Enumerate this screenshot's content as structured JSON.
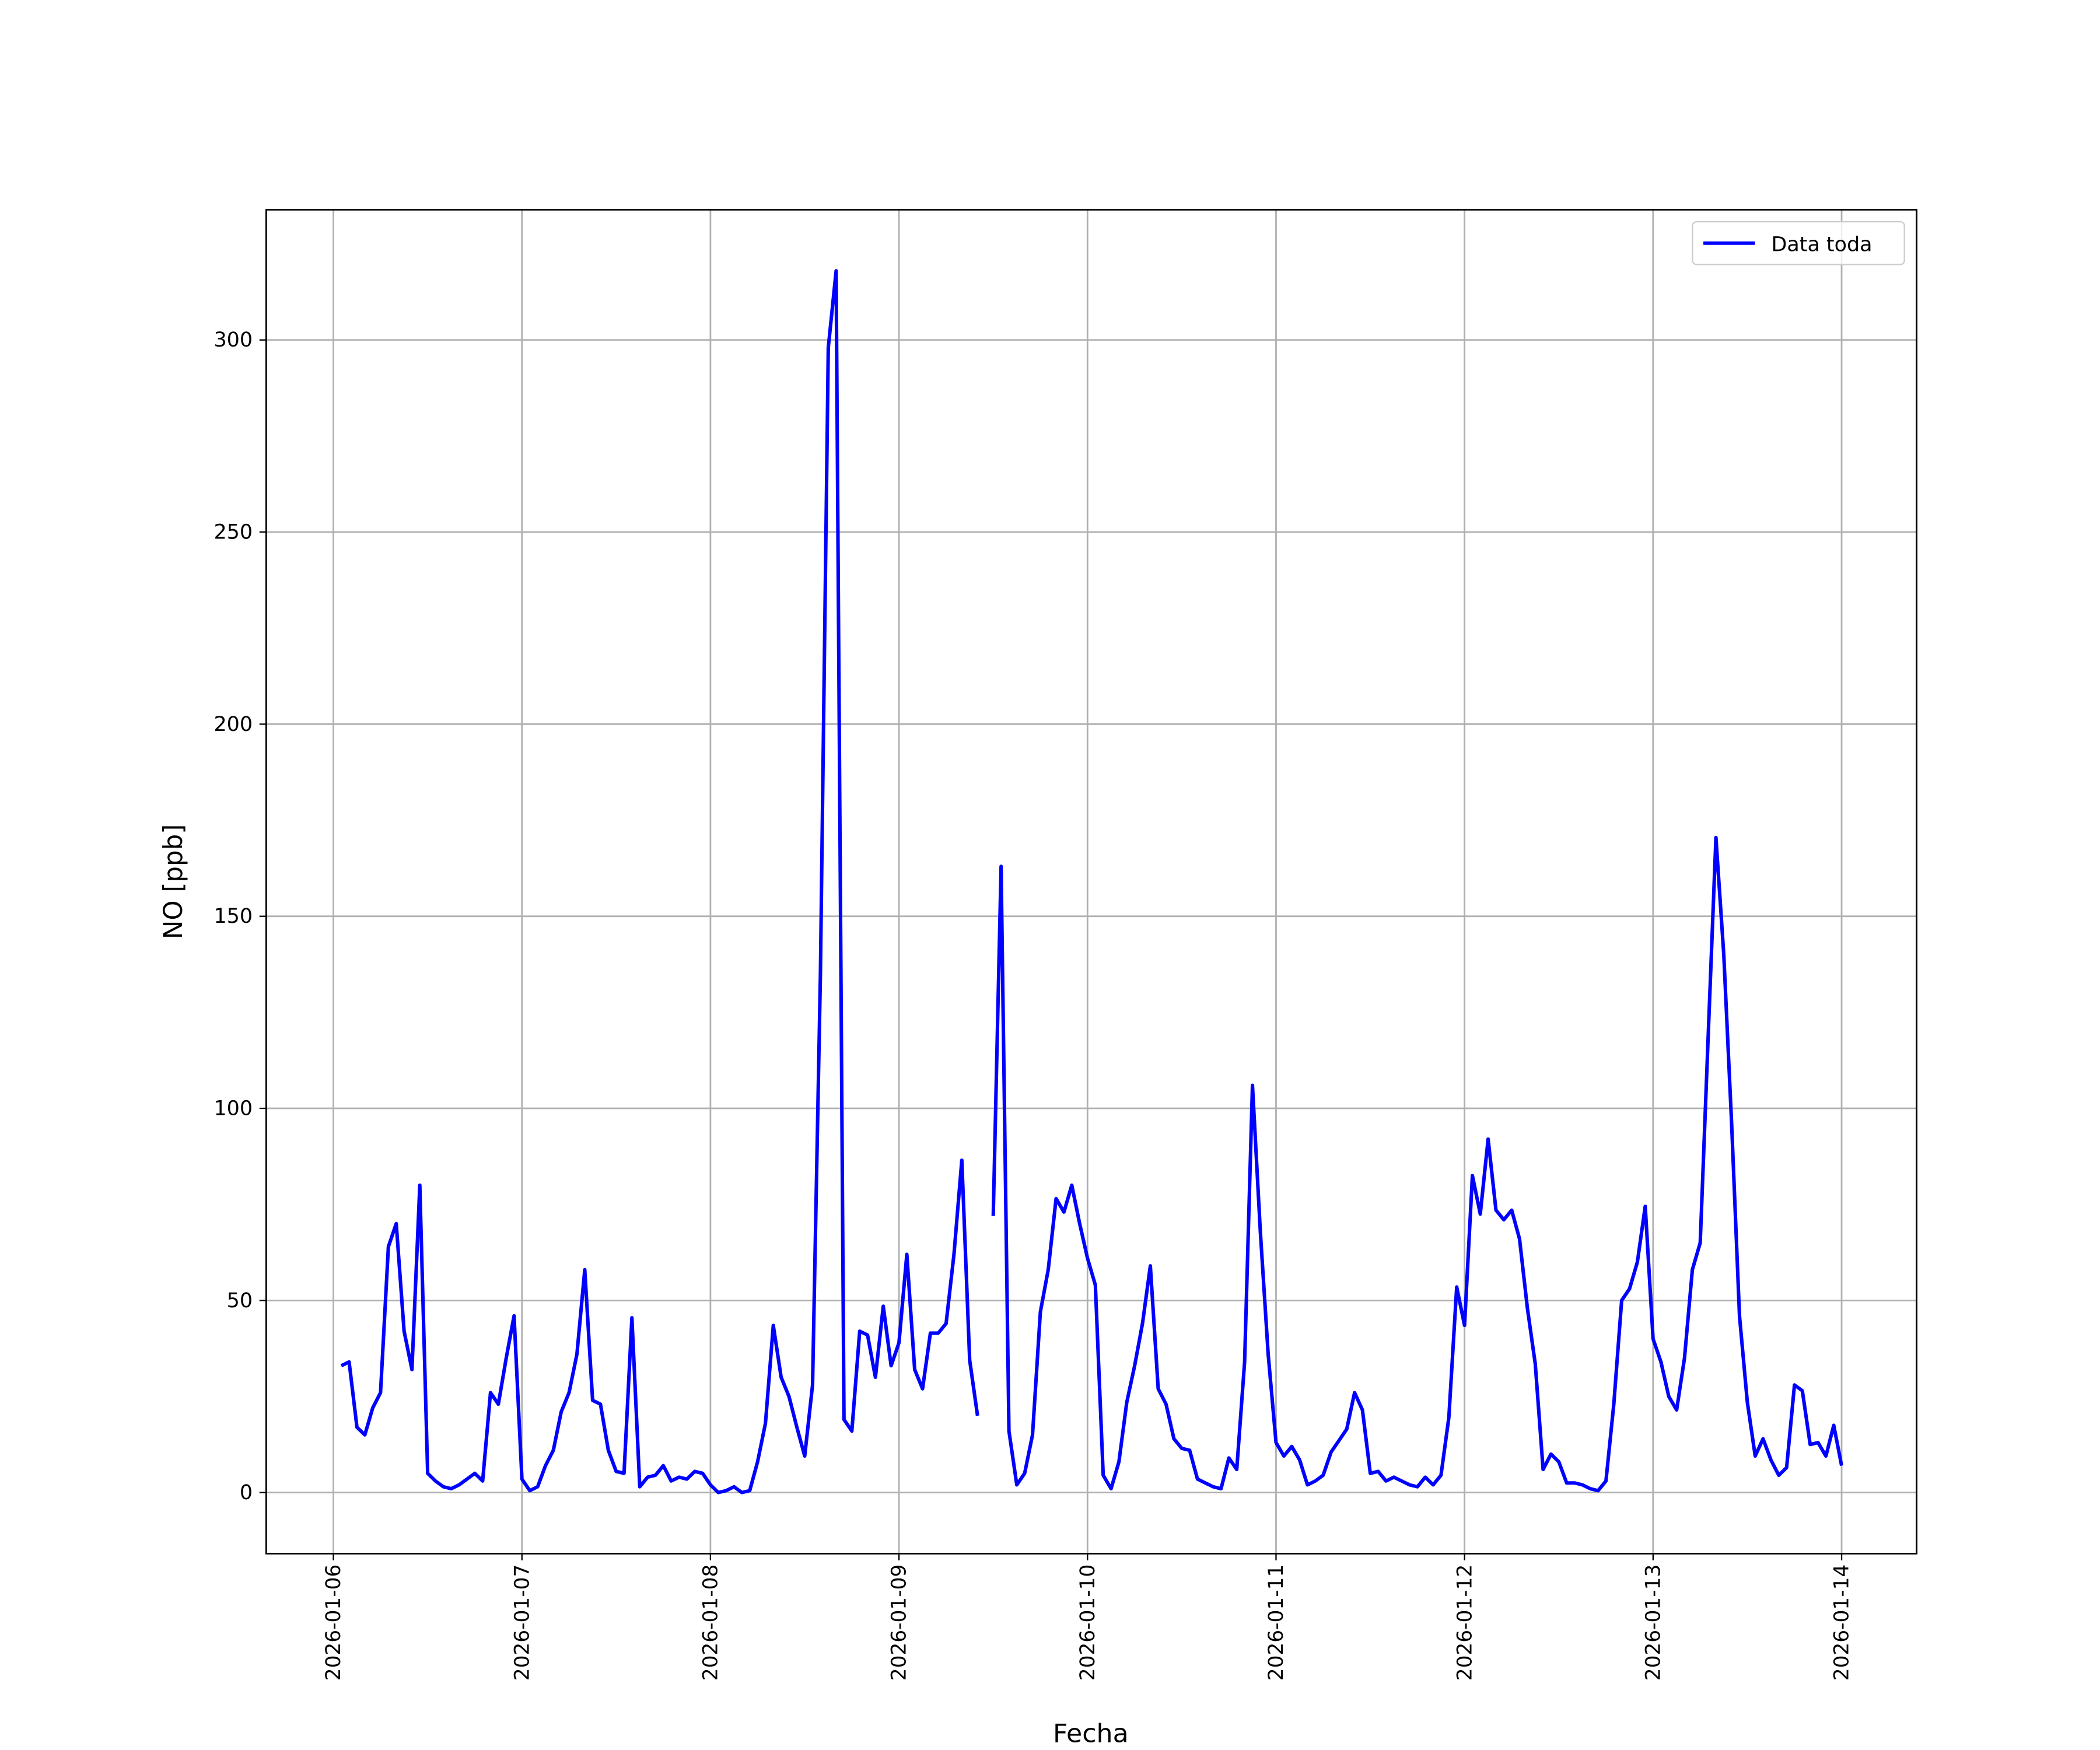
{
  "chart_data": {
    "type": "line",
    "xlabel": "Fecha",
    "ylabel": "NO [ppb]",
    "x": [
      "2026-01-06T01:00",
      "2026-01-06T02:00",
      "2026-01-06T03:00",
      "2026-01-06T04:00",
      "2026-01-06T05:00",
      "2026-01-06T06:00",
      "2026-01-06T07:00",
      "2026-01-06T08:00",
      "2026-01-06T09:00",
      "2026-01-06T10:00",
      "2026-01-06T11:00",
      "2026-01-06T12:00",
      "2026-01-06T13:00",
      "2026-01-06T14:00",
      "2026-01-06T15:00",
      "2026-01-06T16:00",
      "2026-01-06T17:00",
      "2026-01-06T18:00",
      "2026-01-06T19:00",
      "2026-01-06T20:00",
      "2026-01-06T21:00",
      "2026-01-06T22:00",
      "2026-01-06T23:00",
      "2026-01-07T00:00",
      "2026-01-07T01:00",
      "2026-01-07T02:00",
      "2026-01-07T03:00",
      "2026-01-07T04:00",
      "2026-01-07T05:00",
      "2026-01-07T06:00",
      "2026-01-07T07:00",
      "2026-01-07T08:00",
      "2026-01-07T09:00",
      "2026-01-07T10:00",
      "2026-01-07T11:00",
      "2026-01-07T12:00",
      "2026-01-07T13:00",
      "2026-01-07T14:00",
      "2026-01-07T15:00",
      "2026-01-07T16:00",
      "2026-01-07T17:00",
      "2026-01-07T18:00",
      "2026-01-07T19:00",
      "2026-01-07T20:00",
      "2026-01-07T21:00",
      "2026-01-07T22:00",
      "2026-01-07T23:00",
      "2026-01-08T00:00",
      "2026-01-08T01:00",
      "2026-01-08T02:00",
      "2026-01-08T03:00",
      "2026-01-08T04:00",
      "2026-01-08T05:00",
      "2026-01-08T06:00",
      "2026-01-08T07:00",
      "2026-01-08T08:00",
      "2026-01-08T09:00",
      "2026-01-08T10:00",
      "2026-01-08T11:00",
      "2026-01-08T12:00",
      "2026-01-08T13:00",
      "2026-01-08T14:00",
      "2026-01-08T15:00",
      "2026-01-08T16:00",
      "2026-01-08T17:00",
      "2026-01-08T18:00",
      "2026-01-08T19:00",
      "2026-01-08T20:00",
      "2026-01-08T21:00",
      "2026-01-08T22:00",
      "2026-01-08T23:00",
      "2026-01-09T00:00",
      "2026-01-09T01:00",
      "2026-01-09T02:00",
      "2026-01-09T03:00",
      "2026-01-09T04:00",
      "2026-01-09T05:00",
      "2026-01-09T06:00",
      "2026-01-09T07:00",
      "2026-01-09T08:00",
      "2026-01-09T09:00",
      "2026-01-09T10:00",
      "2026-01-09T11:00",
      "2026-01-09T12:00",
      "2026-01-09T13:00",
      "2026-01-09T14:00",
      "2026-01-09T15:00",
      "2026-01-09T16:00",
      "2026-01-09T17:00",
      "2026-01-09T18:00",
      "2026-01-09T19:00",
      "2026-01-09T20:00",
      "2026-01-09T21:00",
      "2026-01-09T22:00",
      "2026-01-09T23:00",
      "2026-01-10T00:00",
      "2026-01-10T01:00",
      "2026-01-10T02:00",
      "2026-01-10T03:00",
      "2026-01-10T04:00",
      "2026-01-10T05:00",
      "2026-01-10T06:00",
      "2026-01-10T07:00",
      "2026-01-10T08:00",
      "2026-01-10T09:00",
      "2026-01-10T10:00",
      "2026-01-10T11:00",
      "2026-01-10T12:00",
      "2026-01-10T13:00",
      "2026-01-10T14:00",
      "2026-01-10T15:00",
      "2026-01-10T16:00",
      "2026-01-10T17:00",
      "2026-01-10T18:00",
      "2026-01-10T19:00",
      "2026-01-10T20:00",
      "2026-01-10T21:00",
      "2026-01-10T22:00",
      "2026-01-10T23:00",
      "2026-01-11T00:00",
      "2026-01-11T01:00",
      "2026-01-11T02:00",
      "2026-01-11T03:00",
      "2026-01-11T04:00",
      "2026-01-11T05:00",
      "2026-01-11T06:00",
      "2026-01-11T07:00",
      "2026-01-11T08:00",
      "2026-01-11T09:00",
      "2026-01-11T10:00",
      "2026-01-11T11:00",
      "2026-01-11T12:00",
      "2026-01-11T13:00",
      "2026-01-11T14:00",
      "2026-01-11T15:00",
      "2026-01-11T16:00",
      "2026-01-11T17:00",
      "2026-01-11T18:00",
      "2026-01-11T19:00",
      "2026-01-11T20:00",
      "2026-01-11T21:00",
      "2026-01-11T22:00",
      "2026-01-11T23:00",
      "2026-01-12T00:00",
      "2026-01-12T01:00",
      "2026-01-12T02:00",
      "2026-01-12T03:00",
      "2026-01-12T04:00",
      "2026-01-12T05:00",
      "2026-01-12T06:00",
      "2026-01-12T07:00",
      "2026-01-12T08:00",
      "2026-01-12T09:00",
      "2026-01-12T10:00",
      "2026-01-12T11:00",
      "2026-01-12T12:00",
      "2026-01-12T13:00",
      "2026-01-12T14:00",
      "2026-01-12T15:00",
      "2026-01-12T16:00",
      "2026-01-12T17:00",
      "2026-01-12T18:00",
      "2026-01-12T19:00",
      "2026-01-12T20:00",
      "2026-01-12T21:00",
      "2026-01-12T22:00",
      "2026-01-12T23:00",
      "2026-01-13T00:00",
      "2026-01-13T01:00",
      "2026-01-13T02:00",
      "2026-01-13T03:00",
      "2026-01-13T04:00",
      "2026-01-13T05:00",
      "2026-01-13T06:00",
      "2026-01-13T07:00",
      "2026-01-13T08:00",
      "2026-01-13T09:00",
      "2026-01-13T10:00",
      "2026-01-13T11:00",
      "2026-01-13T12:00",
      "2026-01-13T13:00",
      "2026-01-13T14:00",
      "2026-01-13T15:00",
      "2026-01-13T16:00",
      "2026-01-13T17:00",
      "2026-01-13T18:00",
      "2026-01-13T19:00",
      "2026-01-13T20:00",
      "2026-01-13T21:00",
      "2026-01-13T22:00",
      "2026-01-13T23:00",
      "2026-01-14T00:00"
    ],
    "series": [
      {
        "name": "Data toda",
        "color": "#0000ff",
        "values": [
          33,
          34,
          17,
          15,
          22,
          26,
          64,
          70,
          42,
          32,
          80,
          5,
          3,
          1.5,
          1,
          2,
          3.5,
          5,
          3,
          26,
          23,
          35,
          46,
          3.5,
          0.5,
          1.5,
          7,
          11,
          21,
          26,
          36,
          58,
          24,
          23,
          11,
          5.5,
          5,
          45.5,
          1.5,
          4,
          4.5,
          7,
          3,
          4,
          3.5,
          5.5,
          5,
          2,
          0,
          0.5,
          1.5,
          0,
          0.5,
          8,
          18,
          43.5,
          30,
          25,
          17,
          9.5,
          28,
          135,
          298,
          318,
          19,
          16,
          42,
          41,
          30,
          48.5,
          33,
          39,
          62,
          32,
          27,
          41.5,
          41.5,
          44,
          62,
          86.5,
          34.5,
          20,
          null,
          72,
          163,
          16,
          2,
          5,
          15,
          47,
          58,
          76.5,
          73,
          80,
          70,
          61,
          54,
          4.5,
          1,
          8,
          23.5,
          33,
          44,
          59,
          27,
          23,
          14,
          11.5,
          11,
          3.5,
          2.5,
          1.5,
          1,
          9,
          6,
          34,
          106,
          68,
          36,
          13,
          9.5,
          12,
          8.5,
          2,
          3,
          4.5,
          10.5,
          13.5,
          16.5,
          26,
          21.5,
          5,
          5.5,
          3,
          4,
          3,
          2,
          1.5,
          4,
          2,
          4.5,
          19.5,
          53.5,
          43.5,
          82.5,
          72.5,
          92,
          73.5,
          71,
          73.5,
          66,
          48,
          33.5,
          6,
          10,
          8,
          2.5,
          2.5,
          2,
          1,
          0.5,
          3,
          23,
          50,
          53,
          60,
          74.5,
          40,
          34,
          25,
          21.5,
          35,
          58,
          65,
          118,
          170.5,
          140,
          96,
          46,
          23.5,
          9.5,
          14,
          8.5,
          4.5,
          6.5,
          28,
          26.5,
          12.5,
          13,
          9.5,
          17.5,
          7
        ]
      }
    ],
    "xlim": [
      "2026-01-05T15:27",
      "2026-01-14T09:33"
    ],
    "xticks": [
      "2026-01-06",
      "2026-01-07",
      "2026-01-08",
      "2026-01-09",
      "2026-01-10",
      "2026-01-11",
      "2026-01-12",
      "2026-01-13",
      "2026-01-14"
    ],
    "ylim": [
      -15.9,
      333.9
    ],
    "yticks": [
      0,
      50,
      100,
      150,
      200,
      250,
      300
    ],
    "grid": true,
    "legend": "upper right"
  }
}
